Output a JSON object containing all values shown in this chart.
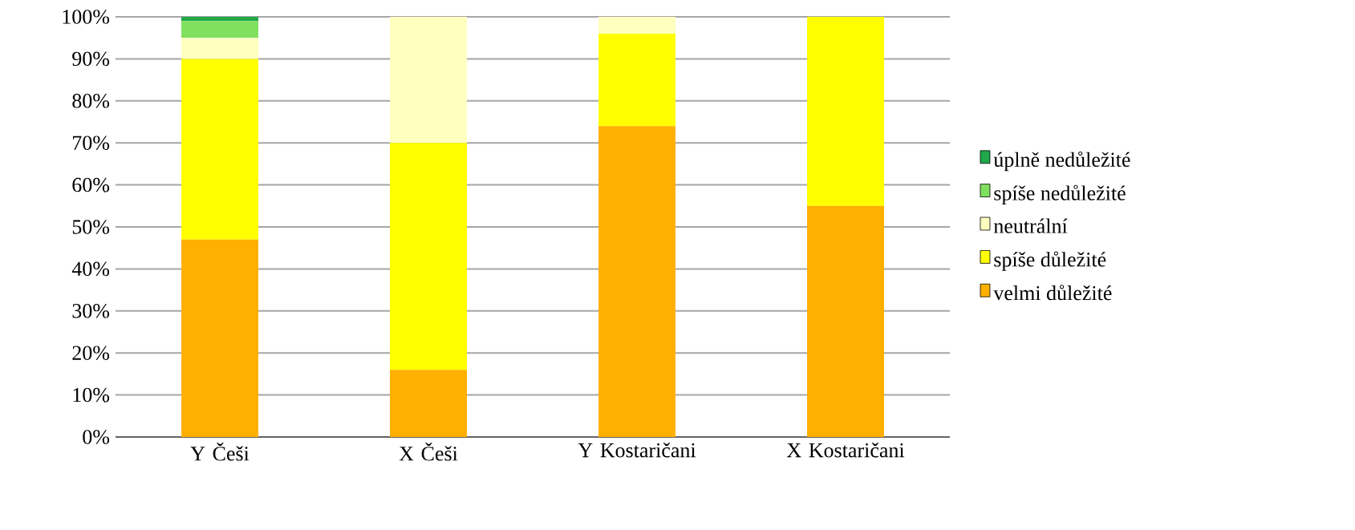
{
  "chart_data": {
    "type": "bar",
    "stacked": true,
    "categories": [
      "Y Češi",
      "X Češi",
      "Y Kostaričani",
      "X Kostaričani"
    ],
    "series": [
      {
        "name": "velmi důležité",
        "color": "#ffb000",
        "values": [
          47,
          16,
          74,
          55
        ]
      },
      {
        "name": "spíše důležité",
        "color": "#ffff00",
        "values": [
          43,
          54,
          22,
          45
        ]
      },
      {
        "name": "neutrální",
        "color": "#ffffc0",
        "values": [
          5,
          30,
          4,
          0
        ]
      },
      {
        "name": "spíše nedůležité",
        "color": "#80e060",
        "values": [
          4,
          0,
          0,
          0
        ]
      },
      {
        "name": "úplně nedůležité",
        "color": "#20a84a",
        "values": [
          1,
          0,
          0,
          0
        ]
      }
    ],
    "ylim": [
      0,
      100
    ],
    "yticks": [
      {
        "value": 0,
        "label": "0%"
      },
      {
        "value": 10,
        "label": "10%"
      },
      {
        "value": 20,
        "label": "20%"
      },
      {
        "value": 30,
        "label": "30%"
      },
      {
        "value": 40,
        "label": "40%"
      },
      {
        "value": 50,
        "label": "50%"
      },
      {
        "value": 60,
        "label": "60%"
      },
      {
        "value": 70,
        "label": "70%"
      },
      {
        "value": 80,
        "label": "80%"
      },
      {
        "value": 90,
        "label": "90%"
      },
      {
        "value": 100,
        "label": "100%"
      }
    ],
    "grid": "y",
    "legend": "right"
  }
}
